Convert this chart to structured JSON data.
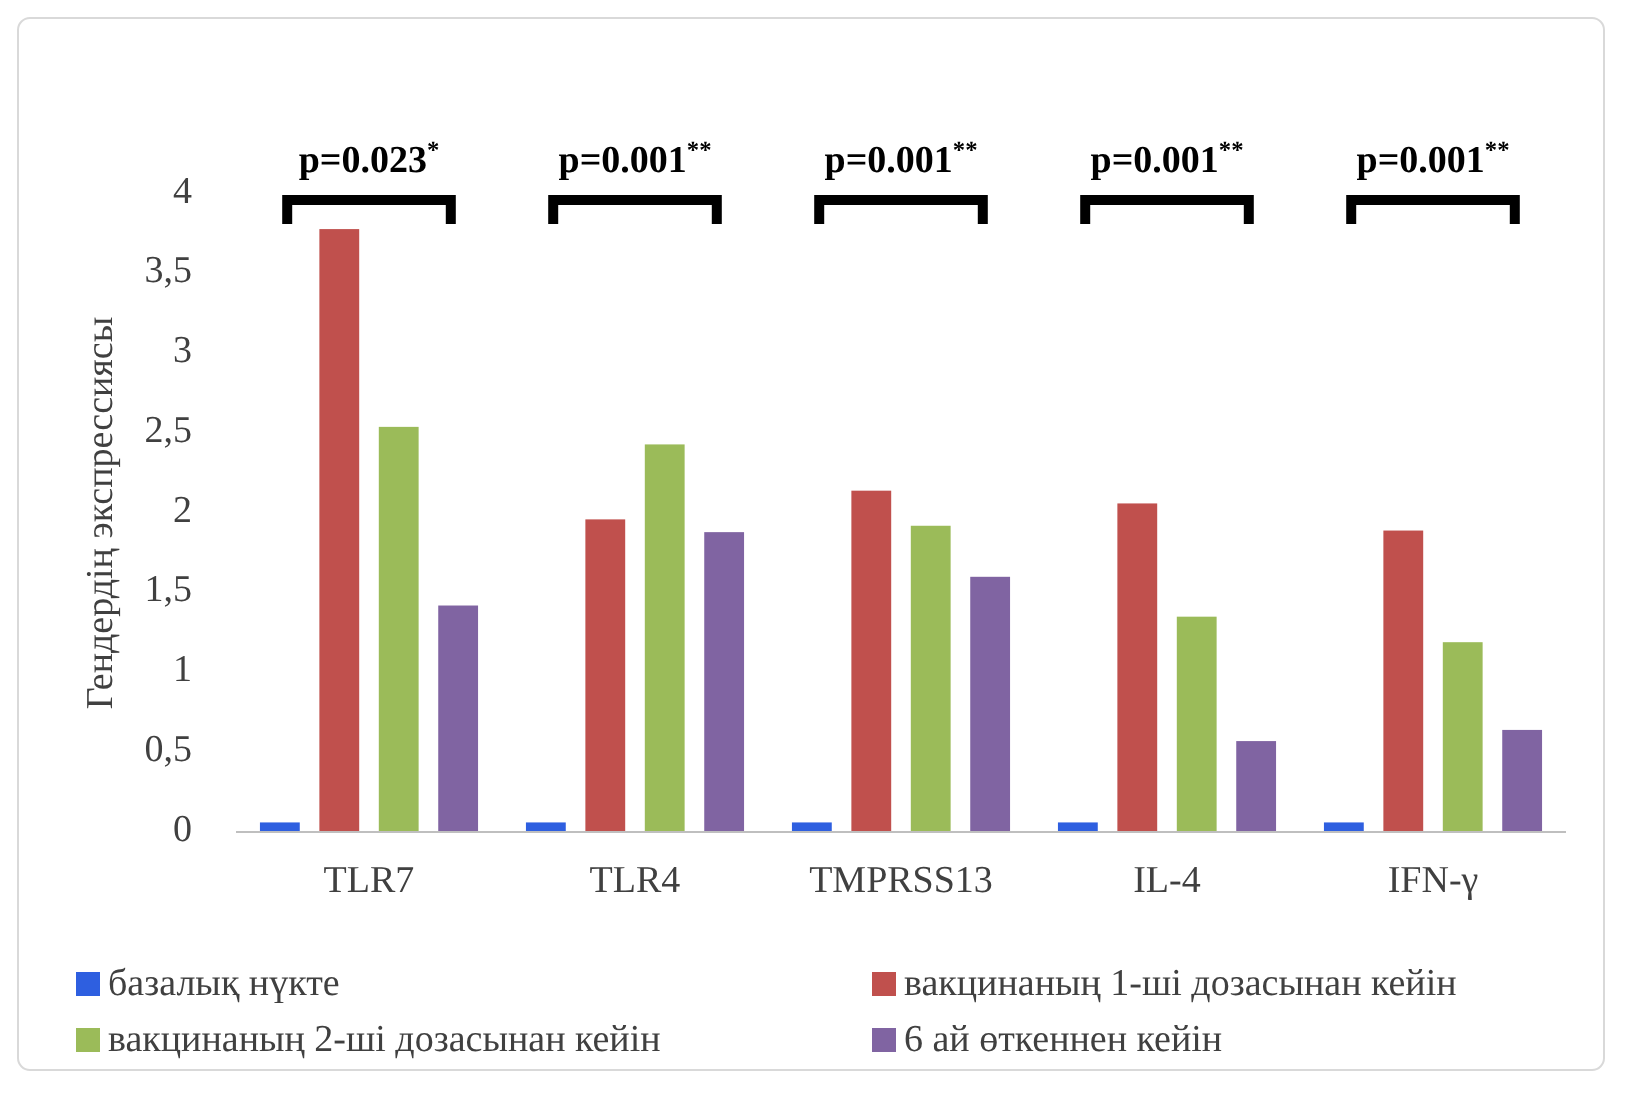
{
  "chart_data": {
    "type": "bar",
    "ylabel": "Гендердің экспрессиясы",
    "categories": [
      "TLR7",
      "TLR4",
      "TMPRSS13",
      "IL-4",
      "IFN-γ"
    ],
    "series": [
      {
        "name": "базалық нүкте",
        "color": "#2e5fe0",
        "values": [
          0.06,
          0.06,
          0.06,
          0.06,
          0.06
        ]
      },
      {
        "name": "вакцинаның 1-ші дозасынан кейін",
        "color": "#c0504d",
        "values": [
          3.78,
          1.96,
          2.14,
          2.06,
          1.89
        ]
      },
      {
        "name": "вакцинаның 2-ші дозасынан кейін",
        "color": "#9bbb59",
        "values": [
          2.54,
          2.43,
          1.92,
          1.35,
          1.19
        ]
      },
      {
        "name": "6 ай өткеннен кейін",
        "color": "#8064a2",
        "values": [
          1.42,
          1.88,
          1.6,
          0.57,
          0.64
        ]
      }
    ],
    "ylim": [
      0,
      4
    ],
    "yticks": [
      0,
      {
        "value": 0.5,
        "label": "0,5"
      },
      1,
      {
        "value": 1.5,
        "label": "1,5"
      },
      2,
      {
        "value": 2.5,
        "label": "2,5"
      },
      3,
      {
        "value": 3.5,
        "label": "3,5"
      },
      4
    ],
    "annotations": [
      "p=0.023$^{*}$",
      "p=0.001$^{**}$",
      "p=0.001$^{**}$",
      "p=0.001$^{**}$",
      "p=0.001$^{**}$"
    ],
    "grid": false,
    "legend": "bottom"
  }
}
